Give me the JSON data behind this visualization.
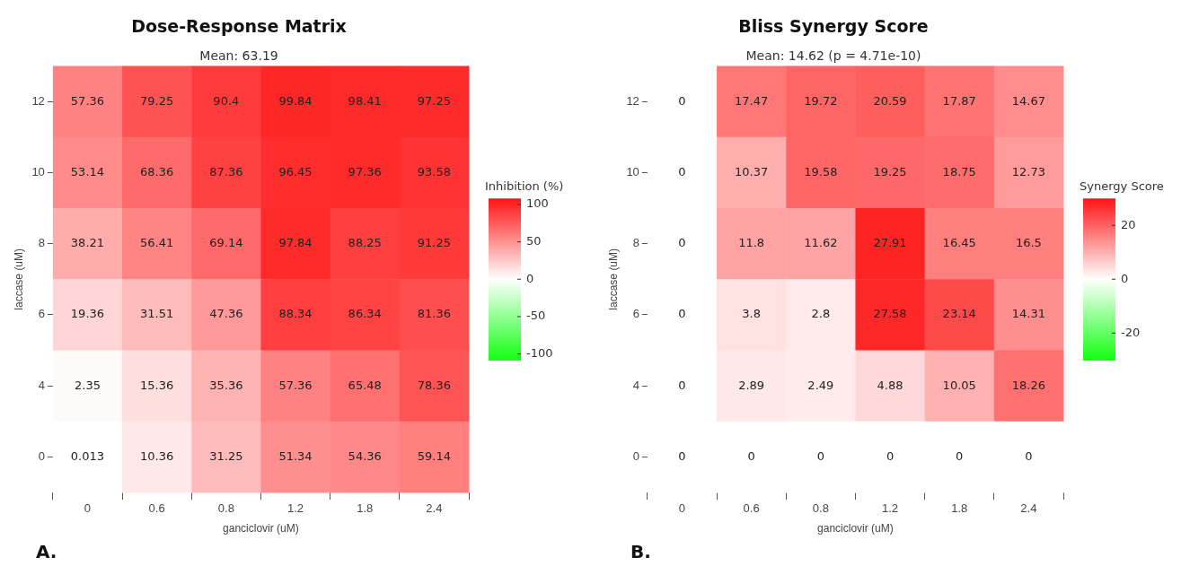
{
  "chart_data": [
    {
      "type": "heatmap",
      "title": "Dose-Response Matrix",
      "subtitle": "Mean: 63.19",
      "xlabel": "ganciclovir (uM)",
      "ylabel": "laccase (uM)",
      "legend_title": "Inhibition (%)",
      "categories": [
        "0",
        "0.6",
        "0.8",
        "1.2",
        "1.8",
        "2.4"
      ],
      "y_categories": [
        "12",
        "10",
        "8",
        "6",
        "4",
        "0"
      ],
      "cells": [
        [
          57.36,
          79.25,
          90.4,
          99.84,
          98.41,
          97.25
        ],
        [
          53.14,
          68.36,
          87.36,
          96.45,
          97.36,
          93.58
        ],
        [
          38.21,
          56.41,
          69.14,
          97.84,
          88.25,
          91.25
        ],
        [
          19.36,
          31.51,
          47.36,
          88.34,
          86.34,
          81.36
        ],
        [
          2.35,
          15.36,
          35.36,
          57.36,
          65.48,
          78.36
        ],
        [
          0.013,
          10.36,
          31.25,
          51.34,
          54.36,
          59.14
        ]
      ],
      "clim": [
        -108,
        108
      ],
      "cticks": [
        -100,
        -50,
        0,
        50,
        100
      ],
      "data_labels": true,
      "annotations": [
        "A."
      ]
    },
    {
      "type": "heatmap",
      "title": "Bliss Synergy Score",
      "subtitle": "Mean: 14.62 (p = 4.71e-10)",
      "xlabel": "ganciclovir (uM)",
      "ylabel": "laccase (uM)",
      "legend_title": "Synergy Score",
      "categories": [
        "0",
        "0.6",
        "0.8",
        "1.2",
        "1.8",
        "2.4"
      ],
      "y_categories": [
        "12",
        "10",
        "8",
        "6",
        "4",
        "0"
      ],
      "cells": [
        [
          0,
          17.47,
          19.72,
          20.59,
          17.87,
          14.67
        ],
        [
          0,
          10.37,
          19.58,
          19.25,
          18.75,
          12.73
        ],
        [
          0,
          11.8,
          11.62,
          27.91,
          16.45,
          16.5
        ],
        [
          0,
          3.8,
          2.8,
          27.58,
          23.14,
          14.31
        ],
        [
          0,
          2.89,
          2.49,
          4.88,
          10.05,
          18.26
        ],
        [
          0,
          0,
          0,
          0,
          0,
          0
        ]
      ],
      "clim": [
        -30,
        30
      ],
      "cticks": [
        -20,
        0,
        20
      ],
      "data_labels": true,
      "annotations": [
        "B."
      ]
    }
  ]
}
